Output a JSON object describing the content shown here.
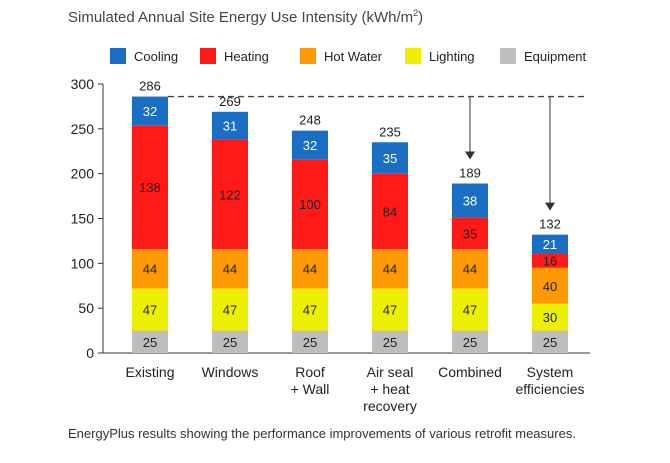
{
  "title": {
    "main": "Simulated Annual Site Energy Use Intensity (kWh/m",
    "superscript": "2",
    "close": ")"
  },
  "caption": "EnergyPlus results showing the performance improvements of various retrofit measures.",
  "chart_data": {
    "type": "bar",
    "stacked": true,
    "title": "Simulated Annual Site Energy Use Intensity (kWh/m²)",
    "xlabel": "",
    "ylabel": "",
    "ylim": [
      0,
      300
    ],
    "yticks": [
      0,
      50,
      100,
      150,
      200,
      250,
      300
    ],
    "grid": false,
    "legend_position": "top",
    "categories": [
      [
        "Existing"
      ],
      [
        "Windows"
      ],
      [
        "Roof",
        "+ Wall"
      ],
      [
        "Air seal",
        "+ heat",
        "recovery"
      ],
      [
        "Combined"
      ],
      [
        "System",
        "efficiencies"
      ]
    ],
    "series": [
      {
        "name": "Equipment",
        "color": "#bdbdbd",
        "label_color": "#222222",
        "values": [
          25,
          25,
          25,
          25,
          25,
          25
        ]
      },
      {
        "name": "Lighting",
        "color": "#ecf000",
        "label_color": "#222222",
        "values": [
          47,
          47,
          47,
          47,
          47,
          30
        ]
      },
      {
        "name": "Hot Water",
        "color": "#ff9900",
        "label_color": "#222222",
        "values": [
          44,
          44,
          44,
          44,
          44,
          40
        ]
      },
      {
        "name": "Heating",
        "color": "#ff1a1a",
        "label_color": "#222222",
        "values": [
          138,
          122,
          100,
          84,
          35,
          16
        ]
      },
      {
        "name": "Cooling",
        "color": "#1a6fc4",
        "label_color": "#ffffff",
        "values": [
          32,
          31,
          32,
          35,
          38,
          21
        ]
      }
    ],
    "legend_order": [
      "Cooling",
      "Heating",
      "Hot Water",
      "Lighting",
      "Equipment"
    ],
    "totals": [
      286,
      269,
      248,
      235,
      189,
      132
    ],
    "annotations": [
      {
        "type": "dashed-reference-line",
        "value": 286,
        "description": "baseline level of Existing"
      },
      {
        "type": "arrow",
        "from_value": 286,
        "to_category_index": 4,
        "to_value": 189
      },
      {
        "type": "arrow",
        "from_value": 286,
        "to_category_index": 5,
        "to_value": 132
      }
    ]
  }
}
